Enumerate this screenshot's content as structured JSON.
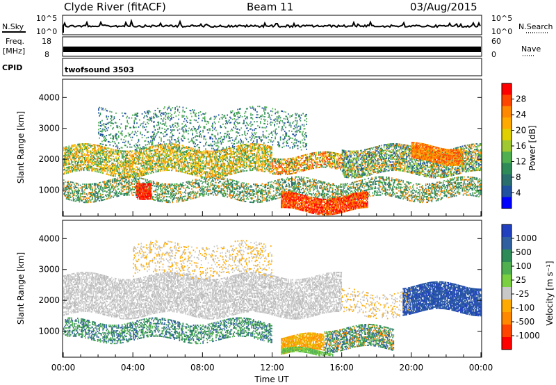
{
  "header": {
    "station": "Clyde River (fitACF)",
    "beam": "Beam 11",
    "date": "03/Aug/2015"
  },
  "top_panel": {
    "nsky_label": "N.Sky",
    "nsky_ticks": [
      "10^5",
      "10^0"
    ],
    "nsearch_label": "N.Search",
    "nsearch_ticks": [
      "10^5",
      "10^0"
    ],
    "freq_label": "Freq.",
    "freq_unit": "[MHz]",
    "freq_ticks": [
      "18",
      "8"
    ],
    "nave_label": "Nave",
    "nave_ticks": [
      "60",
      "0"
    ],
    "cpid_label": "CPID",
    "cpid_value": "twofsound 3503"
  },
  "chart_data": [
    {
      "type": "heatmap",
      "name": "power",
      "ylabel": "Slant Range [km]",
      "xlabel": "Time UT",
      "x_ticks": [
        "00:00",
        "04:00",
        "08:00",
        "12:00",
        "16:00",
        "20:00",
        "00:00"
      ],
      "xlim_hours": [
        0,
        24
      ],
      "y_ticks": [
        1000,
        2000,
        3000,
        4000
      ],
      "ylim": [
        180,
        4570
      ],
      "colorbar": {
        "label": "Power [dB]",
        "ticks": [
          "28",
          "24",
          "20",
          "16",
          "12",
          "8",
          "4"
        ],
        "colors": [
          "#ff0000",
          "#ff4400",
          "#ff8800",
          "#ffaa00",
          "#e0d000",
          "#a0c830",
          "#50b050",
          "#2e8b57",
          "#2a6e6e",
          "#2050a0",
          "#0000ff"
        ]
      },
      "regions": [
        {
          "t0": 0.0,
          "t1": 12.0,
          "r0": 1500,
          "r1": 2400,
          "level": "mid",
          "colors": [
            "#ff8800",
            "#e0d000",
            "#50b050",
            "#2e8b57",
            "#ffaa00"
          ]
        },
        {
          "t0": 12.0,
          "t1": 16.0,
          "r0": 1600,
          "r1": 2100,
          "level": "mid",
          "colors": [
            "#ff8800",
            "#ff4400",
            "#e0d000",
            "#2e8b57"
          ]
        },
        {
          "t0": 16.0,
          "t1": 24.0,
          "r0": 1500,
          "r1": 2400,
          "level": "mid",
          "colors": [
            "#50b050",
            "#2e8b57",
            "#ff8800",
            "#2050a0",
            "#a0c830"
          ]
        },
        {
          "t0": 0.0,
          "t1": 24.0,
          "r0": 700,
          "r1": 1300,
          "level": "low",
          "colors": [
            "#2e8b57",
            "#50b050",
            "#2a6e6e",
            "#ff8800"
          ]
        },
        {
          "t0": 12.5,
          "t1": 17.5,
          "r0": 300,
          "r1": 800,
          "level": "high",
          "colors": [
            "#ff0000",
            "#ff4400",
            "#ff8800"
          ]
        },
        {
          "t0": 4.2,
          "t1": 5.0,
          "r0": 800,
          "r1": 1300,
          "level": "high",
          "colors": [
            "#ff0000",
            "#ff4400"
          ]
        },
        {
          "t0": 2.0,
          "t1": 14.0,
          "r0": 2400,
          "r1": 3600,
          "level": "sparse",
          "colors": [
            "#2050a0",
            "#2e8b57",
            "#50b050"
          ]
        },
        {
          "t0": 20.0,
          "t1": 23.0,
          "r0": 1900,
          "r1": 2400,
          "level": "high",
          "colors": [
            "#ff4400",
            "#ff8800",
            "#ffaa00"
          ]
        }
      ]
    },
    {
      "type": "heatmap",
      "name": "velocity",
      "ylabel": "Slant Range [km]",
      "xlabel": "Time UT",
      "x_ticks": [
        "00:00",
        "04:00",
        "08:00",
        "12:00",
        "16:00",
        "20:00",
        "00:00"
      ],
      "xlim_hours": [
        0,
        24
      ],
      "y_ticks": [
        1000,
        2000,
        3000,
        4000
      ],
      "ylim": [
        180,
        4570
      ],
      "colorbar": {
        "label": "Velocity [m s⁻¹]",
        "ticks": [
          "1000",
          "500",
          "100",
          "25",
          "-25",
          "-100",
          "-500",
          "-1000"
        ],
        "colors": [
          "#2040c0",
          "#3060a0",
          "#2e8b57",
          "#50b050",
          "#7ad040",
          "#c8c8c8",
          "#ffaa00",
          "#ff8800",
          "#ff4400",
          "#ff0000"
        ]
      },
      "regions": [
        {
          "t0": 0.0,
          "t1": 16.0,
          "r0": 1500,
          "r1": 2800,
          "level": "mid",
          "colors": [
            "#c8c8c8",
            "#b8b8b8",
            "#d4d4d4"
          ]
        },
        {
          "t0": 0.0,
          "t1": 12.0,
          "r0": 700,
          "r1": 1300,
          "level": "low",
          "colors": [
            "#2e8b57",
            "#3060a0",
            "#50b050"
          ]
        },
        {
          "t0": 12.5,
          "t1": 15.0,
          "r0": 300,
          "r1": 800,
          "level": "high",
          "colors": [
            "#ffaa00",
            "#ff8800",
            "#e0c000"
          ]
        },
        {
          "t0": 12.5,
          "t1": 15.5,
          "r0": 200,
          "r1": 350,
          "level": "high",
          "colors": [
            "#7ad040",
            "#50b050"
          ]
        },
        {
          "t0": 15.0,
          "t1": 19.0,
          "r0": 400,
          "r1": 1100,
          "level": "mid",
          "colors": [
            "#2e8b57",
            "#50b050",
            "#ff8800",
            "#3060a0"
          ]
        },
        {
          "t0": 19.5,
          "t1": 24.0,
          "r0": 1600,
          "r1": 2500,
          "level": "high",
          "colors": [
            "#2040c0",
            "#3060a0",
            "#2050a0"
          ]
        },
        {
          "t0": 16.0,
          "t1": 20.0,
          "r0": 1500,
          "r1": 2300,
          "level": "sparse",
          "colors": [
            "#c8c8c8",
            "#ffaa00"
          ]
        },
        {
          "t0": 4.0,
          "t1": 12.0,
          "r0": 2800,
          "r1": 3800,
          "level": "sparse",
          "colors": [
            "#c8c8c8",
            "#ffaa00"
          ]
        }
      ]
    }
  ]
}
